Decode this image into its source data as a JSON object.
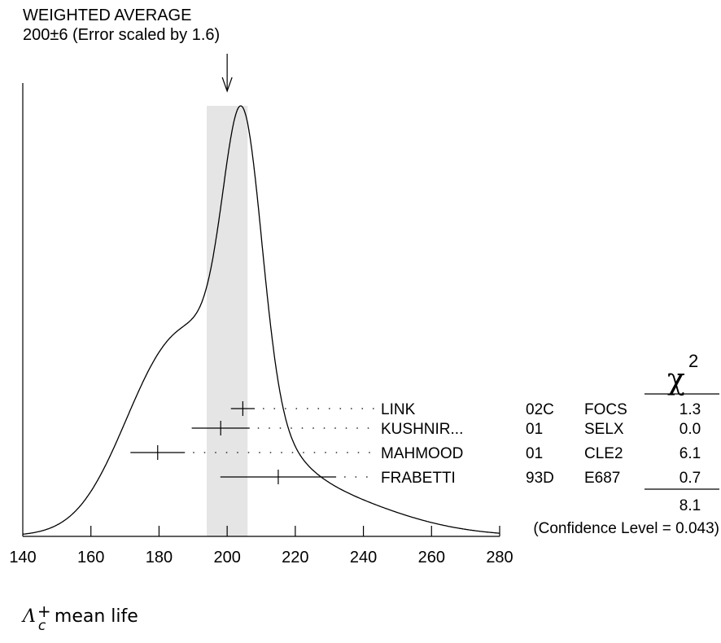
{
  "header": {
    "line1": "WEIGHTED AVERAGE",
    "line2": "200±6 (Error scaled by 1.6)"
  },
  "axis": {
    "title_symbol": "Λ",
    "title_sup": "+",
    "title_sub": "c",
    "title_text": "mean life"
  },
  "chi2_header": "χ",
  "chi2_power": "2",
  "chi2_total": "8.1",
  "confidence": "(Confidence Level = 0.043)",
  "chart_data": {
    "type": "ideogram",
    "xlim": [
      140,
      280
    ],
    "x_ticks": [
      140,
      160,
      180,
      200,
      220,
      240,
      260,
      280
    ],
    "weighted_average": {
      "value": 200,
      "error": 6,
      "scale_factor": 1.6,
      "band": [
        194,
        206
      ]
    },
    "measurements": [
      {
        "author": "LINK",
        "year": "02C",
        "experiment": "FOCS",
        "value": 204.6,
        "error": 3.5,
        "chi2": "1.3"
      },
      {
        "author": "KUSHNIR...",
        "year": "01",
        "experiment": "SELX",
        "value": 198.1,
        "error": 8.5,
        "chi2": "0.0"
      },
      {
        "author": "MAHMOOD",
        "year": "01",
        "experiment": "CLE2",
        "value": 179.6,
        "error": 8.0,
        "chi2": "6.1"
      },
      {
        "author": "FRABETTI",
        "year": "93D",
        "experiment": "E687",
        "value": 215,
        "error": 17,
        "chi2": "0.7"
      }
    ]
  }
}
